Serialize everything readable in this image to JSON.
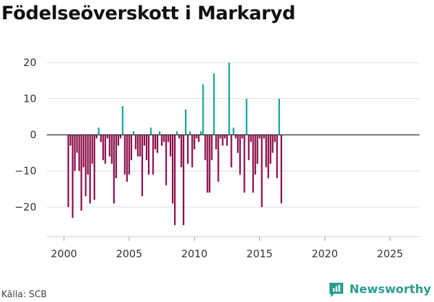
{
  "title": "Födelseöverskott i Markaryd",
  "source": "Källa: SCB",
  "brand": "Newsworthy",
  "colors": {
    "positive": "#14a39a",
    "negative": "#8b0a48",
    "grid": "#dddddd",
    "brand": "#2a9d8f"
  },
  "chart_data": {
    "type": "bar",
    "title": "Födelseöverskott i Markaryd",
    "xlabel": "",
    "ylabel": "",
    "xlim": [
      1999,
      2027
    ],
    "ylim": [
      -28,
      22
    ],
    "y_ticks": [
      20,
      10,
      0,
      -10,
      -20
    ],
    "y_tick_labels": [
      "20",
      "10",
      "0",
      "−10",
      "−20"
    ],
    "x_ticks": [
      2000,
      2005,
      2010,
      2015,
      2020,
      2025
    ],
    "x_tick_labels": [
      "2000",
      "2005",
      "2010",
      "2015",
      "2020",
      "2025"
    ],
    "grid": true,
    "start": 2000.333,
    "step": 0.1667,
    "values": [
      -20,
      -3,
      -23,
      -10,
      -5,
      -10,
      -21,
      -9,
      -17,
      -11,
      -19,
      -8,
      -18,
      -1,
      2,
      -2,
      -7,
      -8,
      -1,
      -6,
      -8,
      -19,
      -12,
      -3,
      -1,
      8,
      -11,
      -13,
      -11,
      -7,
      1,
      -4,
      -6,
      -6,
      -17,
      -3,
      -7,
      -11,
      2,
      -11,
      -4,
      -5,
      1,
      -3,
      -2,
      -14,
      -2,
      -6,
      -19,
      -25,
      1,
      -1,
      -9,
      -25,
      7,
      -8,
      1,
      -9,
      -4,
      -1,
      -2,
      1,
      14,
      -7,
      -16,
      -16,
      -7,
      17,
      -4,
      -13,
      -1,
      -3,
      -1,
      -3,
      20,
      -9,
      2,
      -1,
      -5,
      -11,
      -1,
      -16,
      10,
      -7,
      -2,
      -16,
      -11,
      -8,
      -1,
      -20,
      -1,
      -9,
      -12,
      -8,
      -5,
      -2,
      -12,
      10,
      -19
    ]
  }
}
